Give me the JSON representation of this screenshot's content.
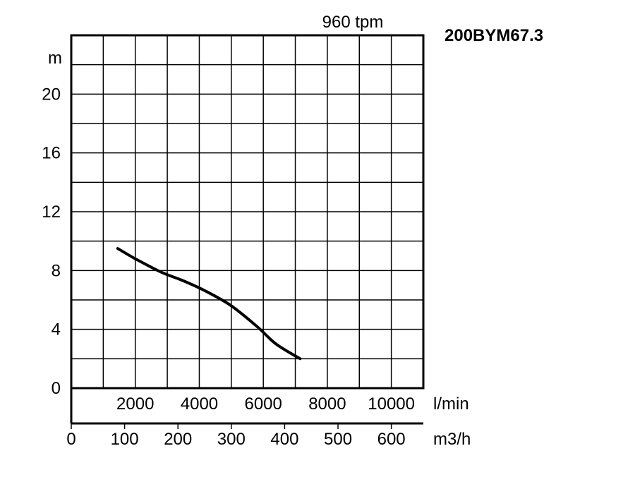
{
  "chart_data": {
    "type": "line",
    "title": "960 tpm",
    "model": "200BYM67.3",
    "ylabel": "m",
    "x_unit_primary": "l/min",
    "x_unit_secondary": "m3/h",
    "ylim": [
      0,
      24
    ],
    "xlim": [
      0,
      11000
    ],
    "yticks": [
      "0",
      "4",
      "8",
      "12",
      "16",
      "20"
    ],
    "x_ticks_lmin": [
      "2000",
      "4000",
      "6000",
      "8000",
      "10000"
    ],
    "x_ticks_m3h": [
      "0",
      "100",
      "200",
      "300",
      "400",
      "500",
      "600"
    ],
    "grid": true,
    "series": [
      {
        "x": [
          1450,
          2000,
          2800,
          3500,
          4200,
          5000,
          5800,
          6400,
          7150
        ],
        "y": [
          9.5,
          8.8,
          7.9,
          7.3,
          6.6,
          5.6,
          4.2,
          3.0,
          2.0
        ]
      }
    ]
  }
}
